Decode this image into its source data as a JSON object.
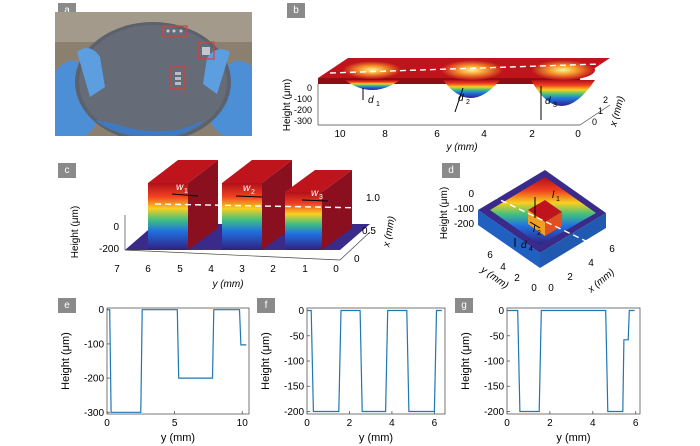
{
  "panels": {
    "a": "a",
    "b": "b",
    "c": "c",
    "d": "d",
    "e": "e",
    "f": "f",
    "g": "g"
  },
  "colors": {
    "line": "#1f77b4",
    "photo_bg": "#8a7e6e",
    "wafer": "#5f6670",
    "glove": "#4d8fd6",
    "box": "#d8403a"
  },
  "panel_b": {
    "ylabel": "Height (μm)",
    "xlabel": "y (mm)",
    "depth_label": "x (mm)",
    "z_ticks": [
      "0",
      "-100",
      "-200",
      "-300"
    ],
    "y_ticks": [
      "10",
      "8",
      "6",
      "4",
      "2",
      "0"
    ],
    "x_ticks": [
      "2",
      "1",
      "0"
    ],
    "annotations": [
      "d",
      "1",
      "d",
      "2",
      "d",
      "3"
    ]
  },
  "panel_c": {
    "ylabel": "Height (μm)",
    "xlabel": "y (mm)",
    "depth_label": "x (mm)",
    "z_ticks": [
      "0",
      "-200"
    ],
    "y_ticks": [
      "7",
      "6",
      "5",
      "4",
      "3",
      "2",
      "1",
      "0"
    ],
    "x_ticks": [
      "1.0",
      "0.5",
      "0"
    ],
    "annotations": [
      "w",
      "1",
      "w",
      "2",
      "w",
      "3"
    ]
  },
  "panel_d": {
    "ylabel": "Height (μm)",
    "xlabel": "y (mm)",
    "depth_label": "x (mm)",
    "z_ticks": [
      "0",
      "-100",
      "-200"
    ],
    "y_ticks": [
      "6",
      "4",
      "2",
      "0"
    ],
    "x_ticks": [
      "0",
      "2",
      "4",
      "6"
    ],
    "annotations": [
      "l",
      "1",
      "l",
      "2",
      "d",
      "4"
    ]
  },
  "chart_data": [
    {
      "type": "line",
      "panel": "e",
      "xlabel": "y (mm)",
      "ylabel": "Height (μm)",
      "xlim": [
        0,
        10.5
      ],
      "ylim": [
        -305,
        5
      ],
      "x_ticks": [
        0,
        5,
        10
      ],
      "y_ticks": [
        0,
        -100,
        -200,
        -300
      ],
      "series": [
        {
          "x": [
            0,
            0.2,
            0.3,
            2.5,
            2.6,
            5.2,
            5.3,
            7.8,
            7.9,
            9.8,
            9.9,
            10.3
          ],
          "y": [
            0,
            0,
            -300,
            -300,
            0,
            0,
            -200,
            -200,
            0,
            0,
            -103,
            -103
          ]
        }
      ]
    },
    {
      "type": "line",
      "panel": "f",
      "xlabel": "y (mm)",
      "ylabel": "Height (μm)",
      "xlim": [
        0,
        6.5
      ],
      "ylim": [
        -205,
        5
      ],
      "x_ticks": [
        0,
        2,
        4,
        6
      ],
      "y_ticks": [
        0,
        -50,
        -100,
        -150,
        -200
      ],
      "series": [
        {
          "x": [
            0,
            0.2,
            0.3,
            1.5,
            1.6,
            2.5,
            2.6,
            3.7,
            3.8,
            4.7,
            4.8,
            6.0,
            6.1,
            6.35
          ],
          "y": [
            0,
            0,
            -200,
            -200,
            0,
            0,
            -200,
            -200,
            0,
            0,
            -200,
            -200,
            0,
            0
          ]
        }
      ]
    },
    {
      "type": "line",
      "panel": "g",
      "xlabel": "y (mm)",
      "ylabel": "Height (μm)",
      "xlim": [
        0,
        6.2
      ],
      "ylim": [
        -205,
        5
      ],
      "x_ticks": [
        0,
        2,
        4,
        6
      ],
      "y_ticks": [
        0,
        -50,
        -100,
        -150,
        -200
      ],
      "series": [
        {
          "x": [
            0,
            0.5,
            0.6,
            1.5,
            1.6,
            4.6,
            4.7,
            5.4,
            5.45,
            5.65,
            5.7,
            5.95
          ],
          "y": [
            0,
            0,
            -200,
            -200,
            0,
            0,
            -200,
            -200,
            -58,
            -58,
            0,
            0
          ]
        }
      ]
    }
  ]
}
